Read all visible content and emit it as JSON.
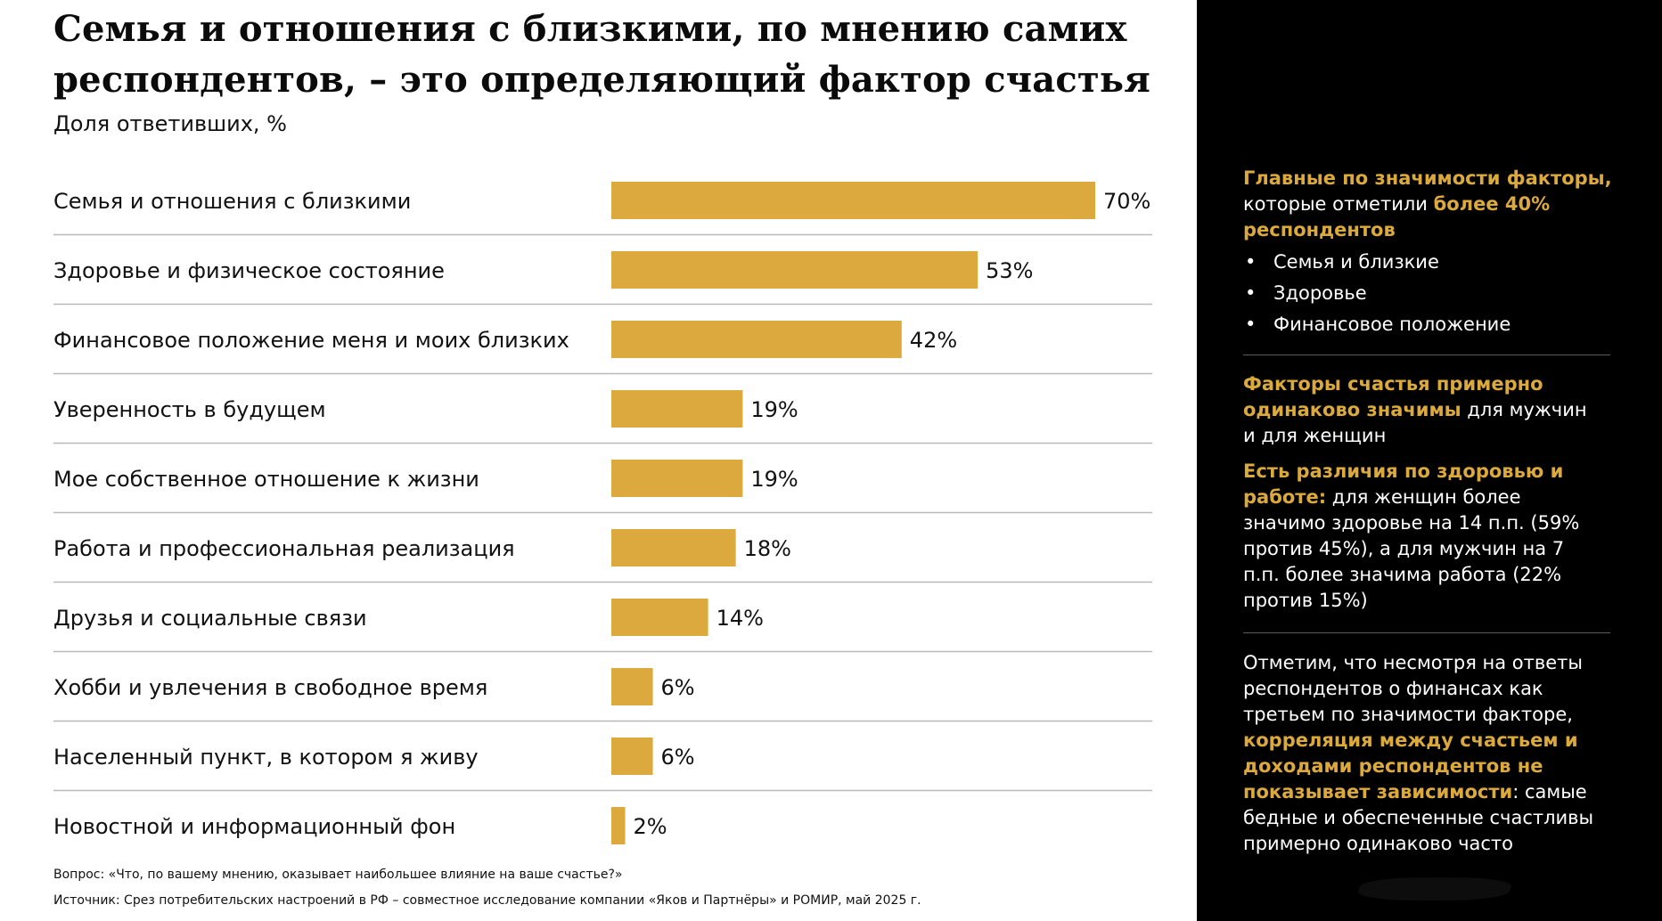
{
  "header": {
    "title_line1": "Семья и отношения с близкими, по мнению самих",
    "title_line2": "респондентов, – это определяющий фактор счастья",
    "subtitle": "Доля ответивших, %"
  },
  "chart_data": {
    "type": "bar",
    "orientation": "horizontal",
    "title": "Семья и отношения с близкими, по мнению самих респондентов, – это определяющий фактор счастья",
    "subtitle": "Доля ответивших, %",
    "unit": "%",
    "xlim": [
      0,
      70
    ],
    "grid": false,
    "bar_color": "#dca93e",
    "categories": [
      "Семья и отношения с близкими",
      "Здоровье и физическое состояние",
      "Финансовое положение меня и моих близких",
      "Уверенность в будущем",
      "Мое собственное отношение к жизни",
      "Работа и профессиональная реализация",
      "Друзья и социальные связи",
      "Хобби и увлечения в свободное время",
      "Населенный пункт, в котором я живу",
      "Новостной и информационный фон"
    ],
    "values": [
      70,
      53,
      42,
      19,
      19,
      18,
      14,
      6,
      6,
      2
    ],
    "value_labels": [
      "70%",
      "53%",
      "42%",
      "19%",
      "19%",
      "18%",
      "14%",
      "6%",
      "6%",
      "2%"
    ]
  },
  "footnotes": {
    "question": "Вопрос: «Что, по вашему мнению, оказывает наибольшее влияние на ваше счастье?»",
    "source": "Источник: Срез потребительских настроений в РФ – совместное исследование компании «Яков и Партнёры» и РОМИР, май 2025 г."
  },
  "sidebar": {
    "accent_color": "#dba93c",
    "block1": {
      "h1": "Главные по значимости факторы,",
      "t1": "которые отметили",
      "h2": "более 40%",
      "h3": "респондентов",
      "bullet": "•",
      "items": [
        "Семья и близкие",
        "Здоровье",
        "Финансовое положение"
      ]
    },
    "block2": {
      "h1": "Факторы счастья примерно одинаково значимы",
      "t1": "для мужчин и для женщин"
    },
    "block3": {
      "h1": "Есть различия по здоровью и работе:",
      "t1": "для женщин более значимо здоровье на 14 п.п. (59% против 45%), а для мужчин на 7 п.п. более значима работа (22% против 15%)"
    },
    "block4": {
      "t1": "Отметим, что несмотря на ответы респондентов о финансах как третьем по значимости факторе,",
      "h1": "корреляция между счастьем и доходами респондентов не показывает зависимости",
      "t2": ": самые бедные и обеспеченные счастливы примерно одинаково часто"
    }
  }
}
